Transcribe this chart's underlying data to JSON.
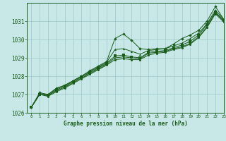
{
  "title": "Graphe pression niveau de la mer (hPa)",
  "bg_color": "#c8e8e8",
  "grid_color": "#a0c8c8",
  "line_color": "#1a5c1a",
  "xlim": [
    -0.5,
    23
  ],
  "ylim": [
    1026,
    1032
  ],
  "yticks": [
    1026,
    1027,
    1028,
    1029,
    1030,
    1031
  ],
  "xticks": [
    0,
    1,
    2,
    3,
    4,
    5,
    6,
    7,
    8,
    9,
    10,
    11,
    12,
    13,
    14,
    15,
    16,
    17,
    18,
    19,
    20,
    21,
    22,
    23
  ],
  "series": [
    [
      1026.3,
      1027.1,
      1027.0,
      1027.35,
      1027.5,
      1027.75,
      1028.0,
      1028.3,
      1028.55,
      1028.8,
      1030.05,
      1030.3,
      1029.95,
      1029.5,
      1029.45,
      1029.5,
      1029.5,
      1029.75,
      1030.05,
      1030.25,
      1030.5,
      1031.0,
      1031.8,
      1031.1
    ],
    [
      1026.3,
      1027.05,
      1027.0,
      1027.3,
      1027.5,
      1027.75,
      1028.0,
      1028.25,
      1028.5,
      1028.75,
      1029.45,
      1029.5,
      1029.35,
      1029.2,
      1029.4,
      1029.45,
      1029.5,
      1029.65,
      1029.8,
      1030.05,
      1030.35,
      1030.85,
      1031.6,
      1031.1
    ],
    [
      1026.3,
      1027.0,
      1026.95,
      1027.25,
      1027.45,
      1027.7,
      1027.95,
      1028.2,
      1028.45,
      1028.7,
      1029.1,
      1029.15,
      1029.05,
      1029.0,
      1029.3,
      1029.35,
      1029.4,
      1029.55,
      1029.7,
      1029.9,
      1030.25,
      1030.8,
      1031.5,
      1031.05
    ],
    [
      1026.3,
      1027.0,
      1026.95,
      1027.2,
      1027.4,
      1027.65,
      1027.9,
      1028.15,
      1028.4,
      1028.65,
      1029.0,
      1029.05,
      1029.0,
      1028.95,
      1029.25,
      1029.3,
      1029.35,
      1029.5,
      1029.6,
      1029.8,
      1030.15,
      1030.7,
      1031.45,
      1031.0
    ],
    [
      1026.3,
      1027.0,
      1026.9,
      1027.15,
      1027.35,
      1027.6,
      1027.85,
      1028.1,
      1028.35,
      1028.6,
      1028.9,
      1028.95,
      1028.9,
      1028.9,
      1029.15,
      1029.25,
      1029.3,
      1029.45,
      1029.55,
      1029.75,
      1030.1,
      1030.65,
      1031.4,
      1030.95
    ]
  ],
  "markers": [
    "D",
    "^",
    "s",
    ">",
    "o"
  ]
}
